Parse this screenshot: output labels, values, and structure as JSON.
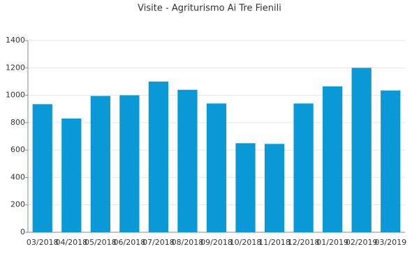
{
  "chart_data": {
    "type": "bar",
    "title": "Visite - Agriturismo Ai Tre Fienili",
    "categories": [
      "03/2018",
      "04/2018",
      "05/2018",
      "06/2018",
      "07/2018",
      "08/2018",
      "09/2018",
      "10/2018",
      "11/2018",
      "12/2018",
      "01/2019",
      "02/2019",
      "03/2019"
    ],
    "values": [
      935,
      830,
      995,
      1000,
      1100,
      1040,
      940,
      650,
      645,
      940,
      1065,
      1200,
      1035
    ],
    "color": "#0a99d6",
    "ylim": [
      0,
      1400
    ],
    "yticks": [
      0,
      200,
      400,
      600,
      800,
      1000,
      1200,
      1400
    ],
    "grid": true
  }
}
